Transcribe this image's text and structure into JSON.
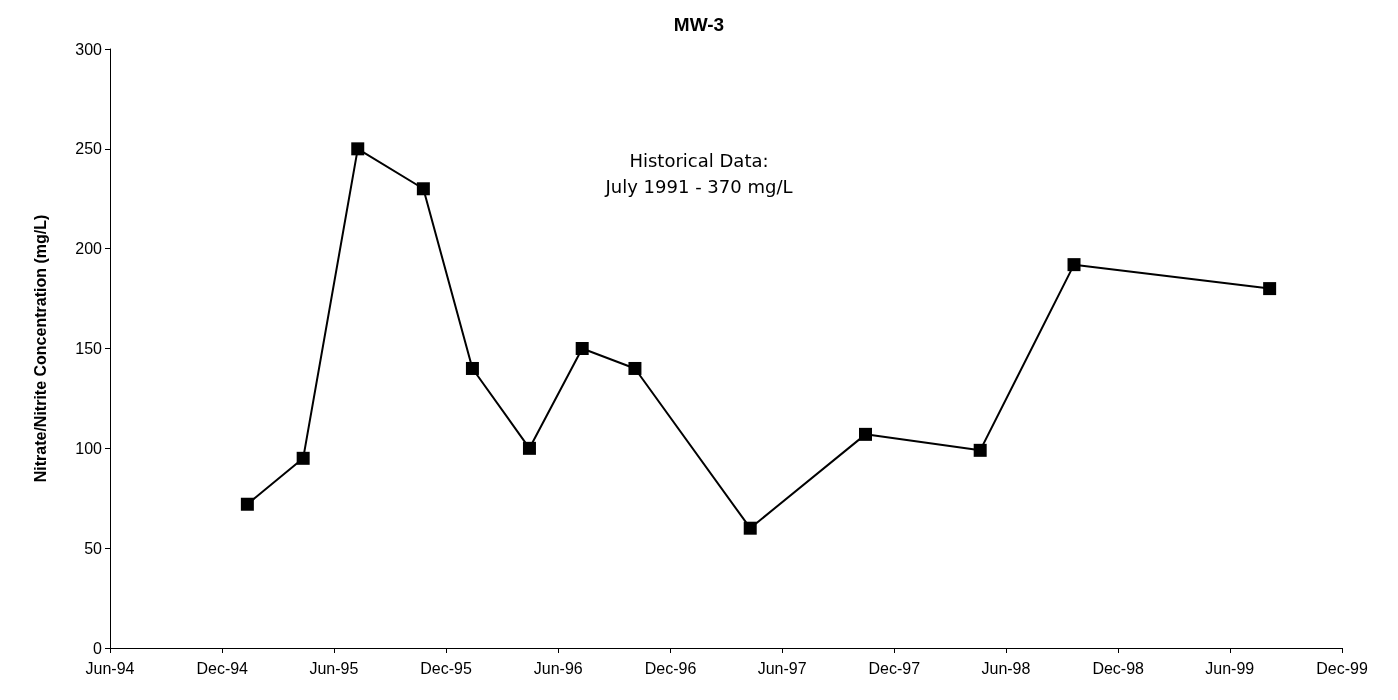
{
  "chart_data": {
    "type": "line",
    "title": "MW-3",
    "ylabel": "Nitrate/Nitrite Concentration (mg/L)",
    "annotations": [
      "Historical Data:",
      "July 1991 - 370 mg/L"
    ],
    "x": [
      "1995-01-11",
      "1995-04-12",
      "1995-07-10",
      "1995-10-25",
      "1996-01-13",
      "1996-04-15",
      "1996-07-10",
      "1996-10-04",
      "1997-04-10",
      "1997-10-15",
      "1998-04-20",
      "1998-09-20",
      "1999-08-05"
    ],
    "series": [
      {
        "color": "#000000",
        "values": [
          72,
          95,
          250,
          230,
          140,
          100,
          150,
          140,
          60,
          107,
          99,
          192,
          180
        ]
      }
    ],
    "xlim": [
      "1994-06-01",
      "1999-12-01"
    ],
    "xticks": [
      {
        "value": "1994-06-01",
        "label": "Jun-94"
      },
      {
        "value": "1994-12-01",
        "label": "Dec-94"
      },
      {
        "value": "1995-06-01",
        "label": "Jun-95"
      },
      {
        "value": "1995-12-01",
        "label": "Dec-95"
      },
      {
        "value": "1996-06-01",
        "label": "Jun-96"
      },
      {
        "value": "1996-12-01",
        "label": "Dec-96"
      },
      {
        "value": "1997-06-01",
        "label": "Jun-97"
      },
      {
        "value": "1997-12-01",
        "label": "Dec-97"
      },
      {
        "value": "1998-06-01",
        "label": "Jun-98"
      },
      {
        "value": "1998-12-01",
        "label": "Dec-98"
      },
      {
        "value": "1999-06-01",
        "label": "Jun-99"
      },
      {
        "value": "1999-12-01",
        "label": "Dec-99"
      }
    ],
    "ylim": [
      0,
      300
    ],
    "yticks": [
      0,
      50,
      100,
      150,
      200,
      250,
      300
    ],
    "grid": false,
    "marker": "square",
    "line_style": "solid"
  }
}
